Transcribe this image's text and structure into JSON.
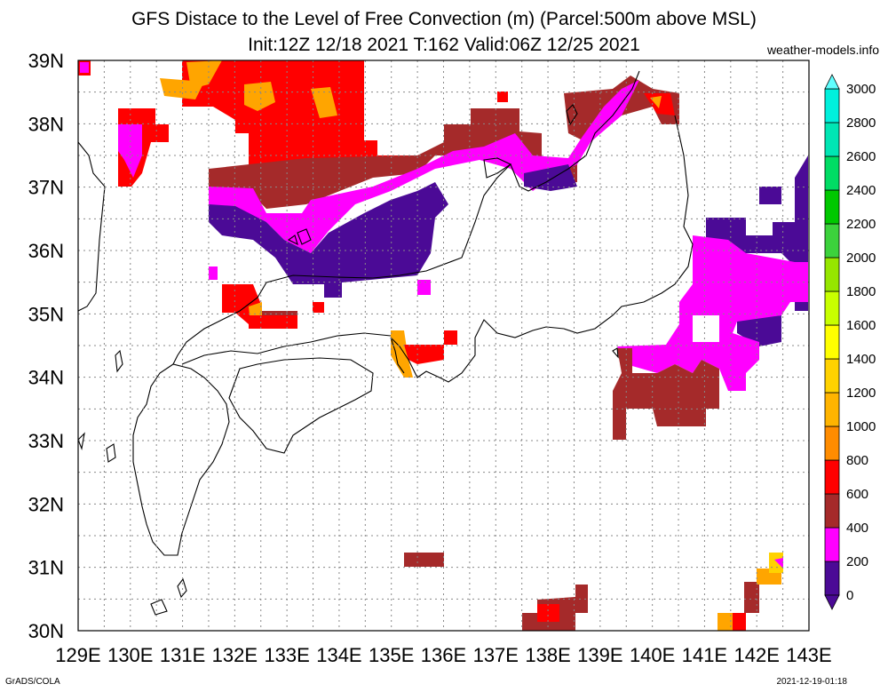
{
  "title_line1": "GFS Distace to the Level of Free Convection (m) (Parcel:500m above MSL)",
  "title_line2": "Init:12Z 12/18 2021 T:162 Valid:06Z 12/25 2021",
  "site": "weather-models.info",
  "footer_left": "GrADS/COLA",
  "footer_right": "2021-12-19-01:18",
  "map": {
    "lon_range": [
      129,
      143
    ],
    "lat_range": [
      30,
      39
    ],
    "lon_labels": [
      "129E",
      "130E",
      "131E",
      "132E",
      "133E",
      "134E",
      "135E",
      "136E",
      "137E",
      "138E",
      "139E",
      "140E",
      "141E",
      "142E",
      "143E"
    ],
    "lat_labels": [
      "30N",
      "31N",
      "32N",
      "33N",
      "34N",
      "35N",
      "36N",
      "37N",
      "38N",
      "39N"
    ]
  },
  "colorbar": {
    "labels": [
      "0",
      "200",
      "400",
      "600",
      "800",
      "1000",
      "1200",
      "1400",
      "1600",
      "1800",
      "2000",
      "2200",
      "2400",
      "2600",
      "2800",
      "3000"
    ],
    "colors": [
      "#4b0a96",
      "#ff00ff",
      "#a52a2a",
      "#ff0000",
      "#ff8c00",
      "#ffb400",
      "#ffd200",
      "#ffff00",
      "#c8ff00",
      "#96e600",
      "#3cd23c",
      "#00c800",
      "#00dc64",
      "#00e6b4",
      "#00f0dc",
      "#60ffff"
    ],
    "under_color": "#4b0a96",
    "over_color": "#60ffff"
  },
  "field": {
    "purple": "#4b0a96",
    "magenta": "#ff00ff",
    "brown": "#a52a2a",
    "red": "#ff0000",
    "orange": "#ffa500"
  }
}
